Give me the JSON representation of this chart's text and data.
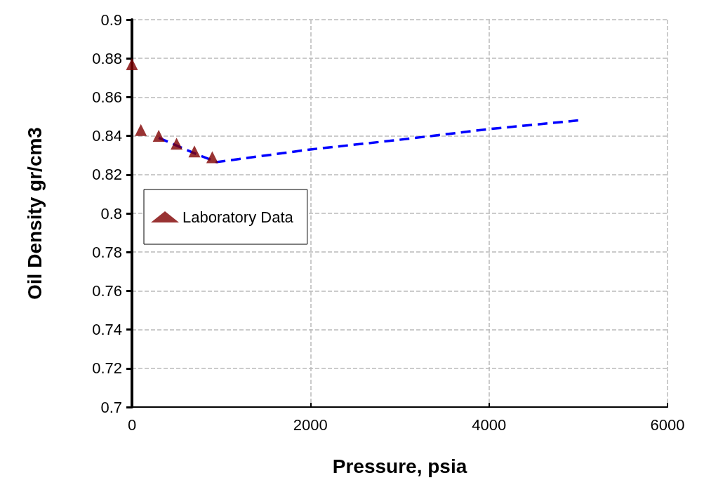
{
  "chart_data": {
    "type": "scatter",
    "xlabel": "Pressure, psia",
    "ylabel": "Oil Density gr/cm3",
    "xlim": [
      0,
      6000
    ],
    "xticks": [
      0,
      2000,
      4000,
      6000
    ],
    "ylim": [
      0.7,
      0.9
    ],
    "yticks": [
      0.7,
      0.72,
      0.74,
      0.76,
      0.78,
      0.8,
      0.82,
      0.84,
      0.86,
      0.88,
      0.9
    ],
    "grid": true,
    "legend": "left",
    "series": [
      {
        "name": "Laboratory Data",
        "type": "scatter",
        "marker": "triangle",
        "color": "#800000",
        "x": [
          0,
          100,
          300,
          500,
          700,
          900
        ],
        "values": [
          0.877,
          0.843,
          0.84,
          0.836,
          0.832,
          0.829
        ]
      },
      {
        "type": "line",
        "line_style": "dashed",
        "marker": "none",
        "color": "#0000ff",
        "x": [
          300,
          500,
          700,
          950,
          2000,
          3000,
          4000,
          5000
        ],
        "values": [
          0.839,
          0.835,
          0.831,
          0.8265,
          0.833,
          0.838,
          0.8435,
          0.848
        ]
      }
    ]
  }
}
